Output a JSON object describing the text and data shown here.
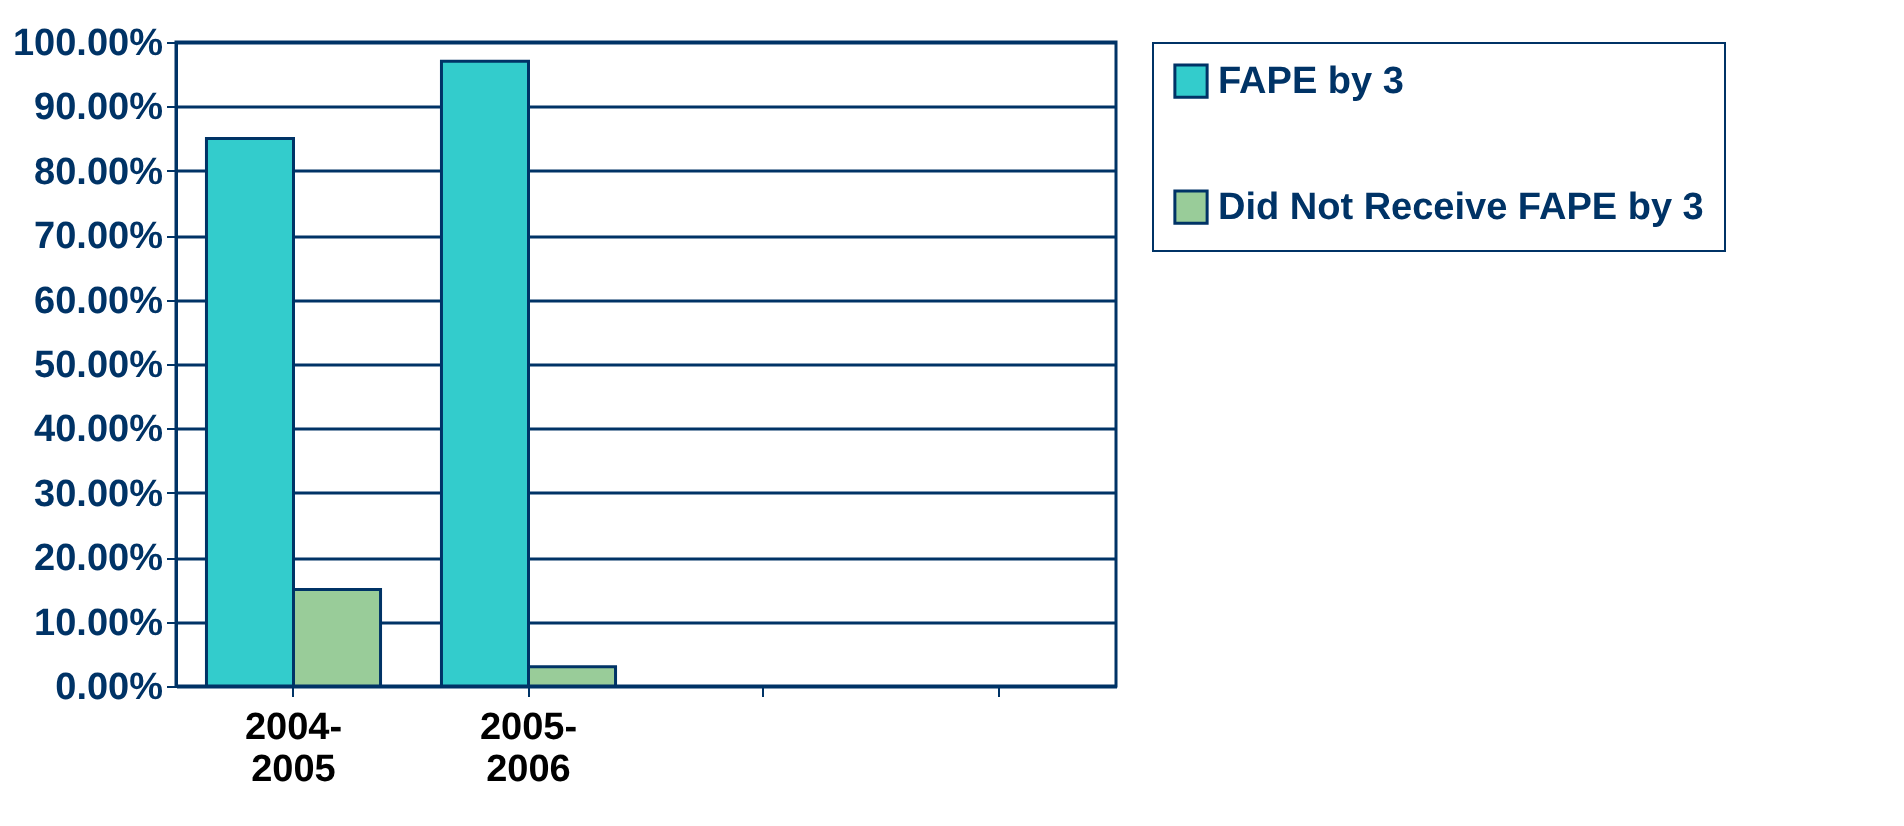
{
  "chart_data": {
    "type": "bar",
    "categories": [
      "2004-2005",
      "2005-2006",
      null,
      null
    ],
    "series": [
      {
        "name": "FAPE by 3",
        "color": "#33cccc",
        "values": [
          85,
          97,
          null,
          null
        ]
      },
      {
        "name": "Did Not Receive FAPE by 3",
        "color": "#99cc99",
        "values": [
          15,
          3,
          null,
          null
        ]
      }
    ],
    "ylim": [
      0,
      100
    ],
    "yticks": [
      {
        "value": 0,
        "label": "0.00%"
      },
      {
        "value": 10,
        "label": "10.00%"
      },
      {
        "value": 20,
        "label": "20.00%"
      },
      {
        "value": 30,
        "label": "30.00%"
      },
      {
        "value": 40,
        "label": "40.00%"
      },
      {
        "value": 50,
        "label": "50.00%"
      },
      {
        "value": 60,
        "label": "60.00%"
      },
      {
        "value": 70,
        "label": "70.00%"
      },
      {
        "value": 80,
        "label": "80.00%"
      },
      {
        "value": 90,
        "label": "90.00%"
      },
      {
        "value": 100,
        "label": "100.00%"
      }
    ],
    "grid": "y",
    "legend": "right"
  }
}
